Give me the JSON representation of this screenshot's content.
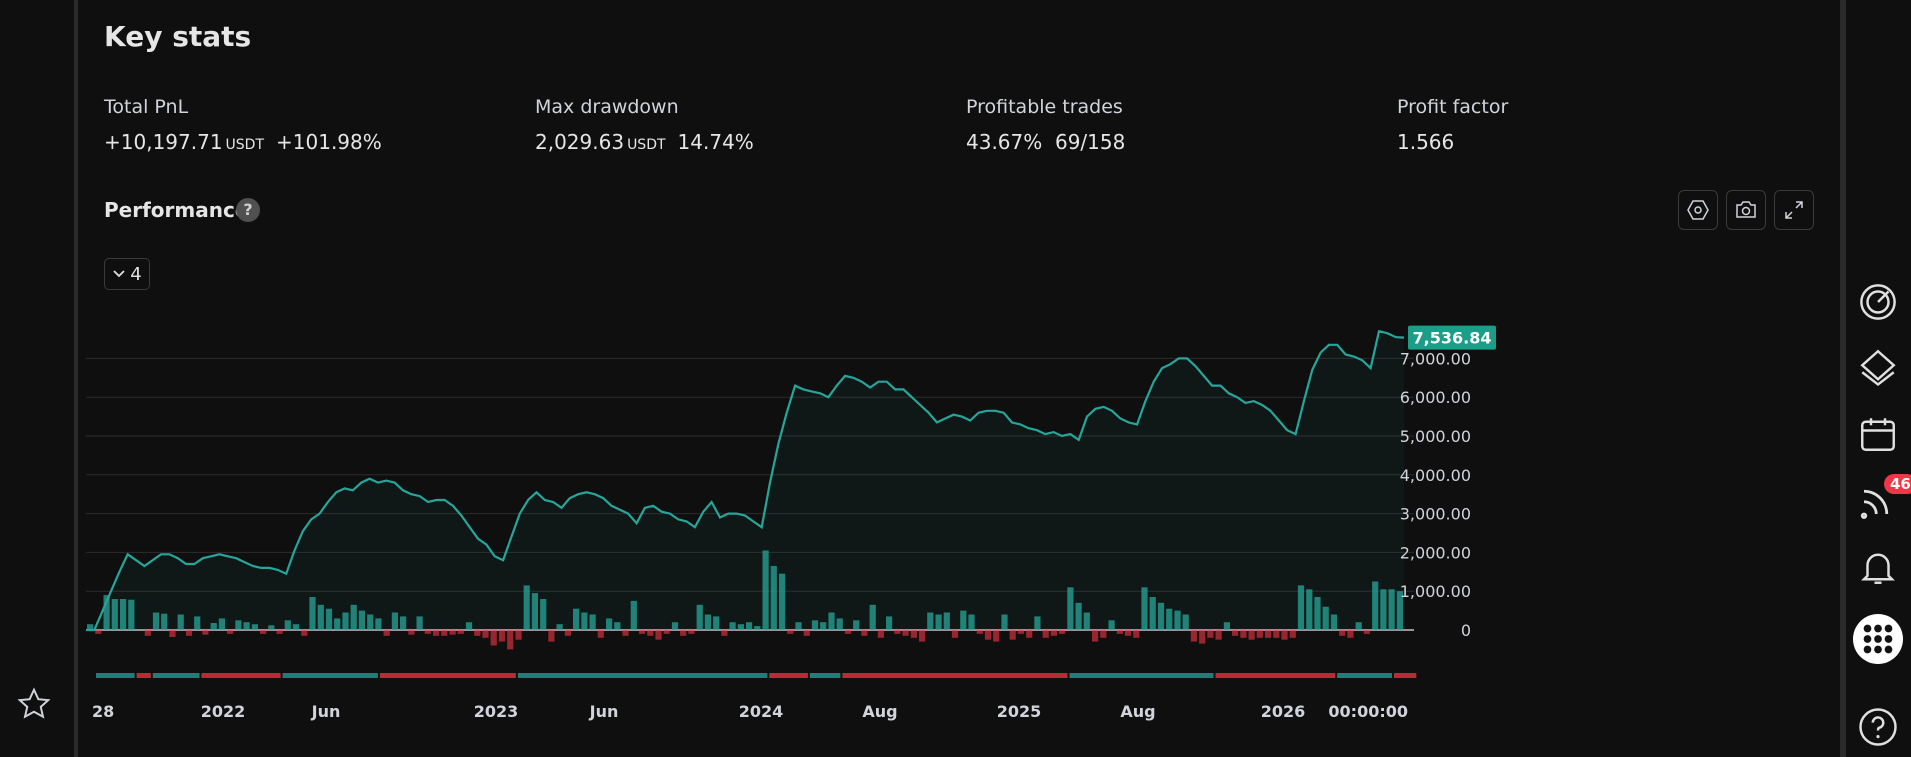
{
  "key_stats": {
    "title": "Key stats",
    "total_pnl": {
      "label": "Total PnL",
      "value": "+10,197.71",
      "unit": "USDT",
      "percent": "+101.98%"
    },
    "max_drawdown": {
      "label": "Max drawdown",
      "value": "2,029.63",
      "unit": "USDT",
      "percent": "14.74%"
    },
    "profitable_trades": {
      "label": "Profitable trades",
      "percent": "43.67%",
      "ratio": "69/158"
    },
    "profit_factor": {
      "label": "Profit factor",
      "value": "1.566"
    }
  },
  "performance": {
    "title": "Performance",
    "help": "?",
    "collapse_count": "4",
    "last_value_label": "7,536.84",
    "tools": [
      "settings-icon",
      "camera-icon",
      "fullscreen-icon"
    ]
  },
  "right_rail": {
    "notifications_badge": "46"
  },
  "colors": {
    "green": "#26a69a",
    "red": "#f23645",
    "accent": "#1a9e87"
  },
  "chart_data": {
    "type": "line",
    "ylim": [
      -500,
      7800
    ],
    "y_ticks": [
      0,
      1000,
      2000,
      3000,
      4000,
      5000,
      6000,
      7000
    ],
    "y_tick_labels": [
      "0",
      "1,000.00",
      "2,000.00",
      "3,000.00",
      "4,000.00",
      "5,000.00",
      "6,000.00",
      "7,000.00"
    ],
    "x_tick_labels": [
      "28",
      "2022",
      "Jun",
      "2023",
      "Jun",
      "2024",
      "Aug",
      "2025",
      "Aug",
      "2026",
      "00:00:00"
    ],
    "series": [
      {
        "values": [
          0,
          0,
          500,
          1000,
          1500,
          1950,
          1800,
          1650,
          1800,
          1950,
          1950,
          1850,
          1700,
          1700,
          1850,
          1900,
          1950,
          1900,
          1850,
          1750,
          1650,
          1600,
          1600,
          1550,
          1450,
          2050,
          2550,
          2850,
          3000,
          3300,
          3550,
          3650,
          3600,
          3800,
          3900,
          3800,
          3850,
          3800,
          3600,
          3500,
          3450,
          3300,
          3350,
          3350,
          3200,
          2950,
          2650,
          2350,
          2200,
          1900,
          1800,
          2400,
          3000,
          3350,
          3550,
          3350,
          3300,
          3150,
          3400,
          3500,
          3550,
          3500,
          3400,
          3200,
          3100,
          3000,
          2750,
          3150,
          3200,
          3050,
          3000,
          2850,
          2800,
          2650,
          3050,
          3300,
          2900,
          3000,
          3000,
          2950,
          2800,
          2650,
          3800,
          4800,
          5600,
          6300,
          6200,
          6150,
          6100,
          6000,
          6300,
          6550,
          6500,
          6400,
          6250,
          6400,
          6400,
          6200,
          6200,
          6000,
          5800,
          5600,
          5350,
          5450,
          5550,
          5500,
          5400,
          5600,
          5650,
          5650,
          5600,
          5350,
          5300,
          5200,
          5150,
          5050,
          5100,
          5000,
          5050,
          4900,
          5500,
          5700,
          5750,
          5650,
          5450,
          5350,
          5300,
          5900,
          6400,
          6750,
          6850,
          7000,
          7000,
          6800,
          6550,
          6300,
          6300,
          6100,
          6000,
          5850,
          5900,
          5800,
          5650,
          5400,
          5150,
          5050,
          5900,
          6700,
          7150,
          7350,
          7350,
          7100,
          7050,
          6950,
          6750,
          7700,
          7650,
          7550,
          7536.84
        ]
      }
    ],
    "trade_bars": [
      {
        "name": "positive",
        "values": [
          150,
          -100,
          900,
          800,
          800,
          780,
          0,
          -150,
          450,
          420,
          -180,
          400,
          -150,
          350,
          -120,
          180,
          300,
          -100,
          250,
          200,
          150,
          -100,
          120,
          -100,
          250,
          150,
          -150,
          850,
          650,
          550,
          300,
          450,
          650,
          500,
          400,
          300,
          -150,
          450,
          350,
          -120,
          350,
          -100,
          -150,
          -150,
          -120,
          -100,
          200,
          -150,
          -200,
          -400,
          -300,
          -500,
          -250,
          1150,
          950,
          800,
          -300,
          150,
          -150,
          550,
          450,
          400,
          -200,
          300,
          200,
          -150,
          750,
          -100,
          -150,
          -250,
          -100,
          200,
          -150,
          -100,
          650,
          400,
          350,
          -150,
          200,
          150,
          200,
          100,
          2050,
          1650,
          1450,
          -100,
          200,
          -150,
          250,
          200,
          450,
          300,
          -100,
          250,
          -150,
          650,
          -200,
          350,
          -100,
          -150,
          -200,
          -300,
          450,
          400,
          450,
          -200,
          500,
          400,
          -100,
          -250,
          -300,
          400,
          -250,
          -100,
          -200,
          350,
          -200,
          -150,
          -100,
          1100,
          700,
          450,
          -300,
          -200,
          250,
          -100,
          -150,
          -200,
          1100,
          850,
          700,
          550,
          500,
          400,
          -300,
          -350,
          -200,
          -250,
          200,
          -150,
          -200,
          -250,
          -200,
          -200,
          -200,
          -250,
          -200,
          1150,
          1050,
          850,
          600,
          400,
          -150,
          -200,
          200,
          -100,
          1250,
          1050,
          1050,
          1000
        ]
      }
    ],
    "period_bar": [
      {
        "type": "win",
        "from": 0,
        "to": 5
      },
      {
        "type": "loss",
        "from": 5,
        "to": 7
      },
      {
        "type": "win",
        "from": 7,
        "to": 13
      },
      {
        "type": "loss",
        "from": 13,
        "to": 23
      },
      {
        "type": "win",
        "from": 23,
        "to": 35
      },
      {
        "type": "loss",
        "from": 35,
        "to": 52
      },
      {
        "type": "win",
        "from": 52,
        "to": 83
      },
      {
        "type": "loss",
        "from": 83,
        "to": 88
      },
      {
        "type": "win",
        "from": 88,
        "to": 92
      },
      {
        "type": "loss",
        "from": 92,
        "to": 120
      },
      {
        "type": "win",
        "from": 120,
        "to": 138
      },
      {
        "type": "loss",
        "from": 138,
        "to": 153
      },
      {
        "type": "win",
        "from": 153,
        "to": 160
      },
      {
        "type": "loss",
        "from": 160,
        "to": 163
      }
    ]
  }
}
